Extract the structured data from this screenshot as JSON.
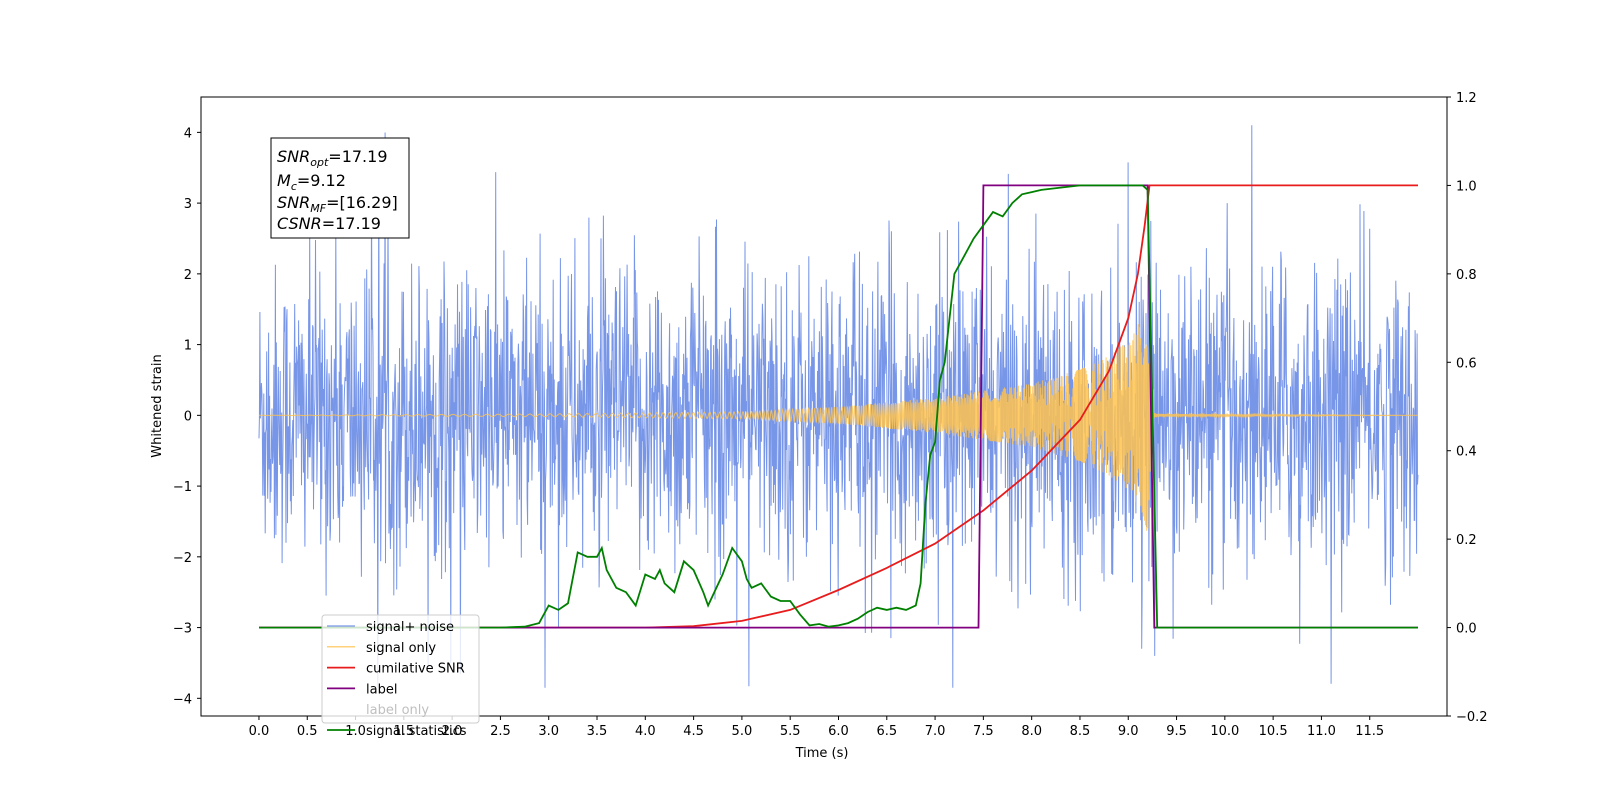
{
  "chart_data": {
    "type": "line",
    "title": "",
    "xlabel": "Time (s)",
    "ylabel": "Whitened strain",
    "y2label": "",
    "xlim": [
      -0.6,
      12.3
    ],
    "ylim": [
      -4.25,
      4.5
    ],
    "y2lim": [
      -0.2,
      1.2
    ],
    "x_ticks": [
      "0.0",
      "0.5",
      "1.0",
      "1.5",
      "2.0",
      "2.5",
      "3.0",
      "3.5",
      "4.0",
      "4.5",
      "5.0",
      "5.5",
      "6.0",
      "6.5",
      "7.0",
      "7.5",
      "8.0",
      "8.5",
      "9.0",
      "9.5",
      "10.0",
      "10.5",
      "11.0",
      "11.5"
    ],
    "y_ticks": [
      "−4",
      "−3",
      "−2",
      "−1",
      "0",
      "1",
      "2",
      "3",
      "4"
    ],
    "y2_ticks": [
      "−0.2",
      "0.0",
      "0.2",
      "0.4",
      "0.6",
      "0.8",
      "1.0",
      "1.2"
    ],
    "grid": false,
    "legend_position": "lower-left",
    "annotation": {
      "snr_opt": {
        "base": "SNR",
        "sub": "opt",
        "value": "=17.19"
      },
      "mc": {
        "base": "M",
        "sub": "c",
        "value": "=9.12"
      },
      "snr_mf": {
        "base": "SNR",
        "sub": "MF",
        "value": "=[16.29]"
      },
      "csnr": {
        "base": "CSNR",
        "value": "=17.19"
      }
    },
    "series": [
      {
        "name": "signal+ noise",
        "axis": "left",
        "color": "#7896e8",
        "t_range": [
          0.0,
          12.0
        ],
        "sample_count": 2400,
        "noise_envelope": 3.8,
        "description_values": {
          "min": -3.85,
          "max": 4.1
        }
      },
      {
        "name": "signal only",
        "axis": "left",
        "color": "#ffc34d",
        "t_range": [
          0.0,
          12.0
        ],
        "chirp_amplitude": [
          [
            0.0,
            0.0
          ],
          [
            3.0,
            0.02
          ],
          [
            5.0,
            0.05
          ],
          [
            6.0,
            0.12
          ],
          [
            7.0,
            0.25
          ],
          [
            8.0,
            0.45
          ],
          [
            8.5,
            0.65
          ],
          [
            8.8,
            0.85
          ],
          [
            9.0,
            1.05
          ],
          [
            9.15,
            1.4
          ],
          [
            9.2,
            1.7
          ],
          [
            9.25,
            0.05
          ],
          [
            9.3,
            0.02
          ],
          [
            12.0,
            0.0
          ]
        ]
      },
      {
        "name": "cumilative SNR",
        "axis": "right",
        "color": "#e81c1c",
        "points": [
          [
            0.0,
            0.0
          ],
          [
            4.0,
            0.0
          ],
          [
            4.5,
            0.003
          ],
          [
            5.0,
            0.015
          ],
          [
            5.5,
            0.04
          ],
          [
            6.0,
            0.085
          ],
          [
            6.5,
            0.135
          ],
          [
            7.0,
            0.19
          ],
          [
            7.5,
            0.265
          ],
          [
            8.0,
            0.355
          ],
          [
            8.5,
            0.47
          ],
          [
            8.8,
            0.58
          ],
          [
            9.0,
            0.7
          ],
          [
            9.1,
            0.8
          ],
          [
            9.17,
            0.91
          ],
          [
            9.22,
            1.0
          ],
          [
            12.0,
            1.0
          ]
        ]
      },
      {
        "name": "label",
        "axis": "right",
        "color": "#800080",
        "points": [
          [
            0.0,
            0.0
          ],
          [
            7.45,
            0.0
          ],
          [
            7.5,
            1.0
          ],
          [
            9.2,
            1.0
          ],
          [
            9.27,
            0.0
          ],
          [
            12.0,
            0.0
          ]
        ]
      },
      {
        "name": "label only",
        "axis": "right",
        "color": "#800080",
        "hidden_in_plot": true,
        "points": []
      },
      {
        "name": "signal statistics",
        "axis": "right",
        "color": "#008000",
        "points": [
          [
            0.0,
            0.0
          ],
          [
            2.5,
            0.0
          ],
          [
            2.75,
            0.002
          ],
          [
            2.9,
            0.01
          ],
          [
            3.0,
            0.05
          ],
          [
            3.1,
            0.04
          ],
          [
            3.2,
            0.055
          ],
          [
            3.3,
            0.17
          ],
          [
            3.4,
            0.16
          ],
          [
            3.5,
            0.16
          ],
          [
            3.55,
            0.18
          ],
          [
            3.6,
            0.13
          ],
          [
            3.7,
            0.09
          ],
          [
            3.8,
            0.08
          ],
          [
            3.9,
            0.05
          ],
          [
            4.0,
            0.12
          ],
          [
            4.1,
            0.11
          ],
          [
            4.15,
            0.13
          ],
          [
            4.2,
            0.1
          ],
          [
            4.3,
            0.08
          ],
          [
            4.4,
            0.15
          ],
          [
            4.5,
            0.13
          ],
          [
            4.6,
            0.08
          ],
          [
            4.65,
            0.05
          ],
          [
            4.8,
            0.12
          ],
          [
            4.9,
            0.18
          ],
          [
            5.0,
            0.15
          ],
          [
            5.05,
            0.11
          ],
          [
            5.1,
            0.09
          ],
          [
            5.2,
            0.1
          ],
          [
            5.3,
            0.07
          ],
          [
            5.4,
            0.06
          ],
          [
            5.5,
            0.06
          ],
          [
            5.6,
            0.03
          ],
          [
            5.7,
            0.005
          ],
          [
            5.8,
            0.008
          ],
          [
            5.9,
            0.002
          ],
          [
            6.0,
            0.005
          ],
          [
            6.1,
            0.01
          ],
          [
            6.2,
            0.02
          ],
          [
            6.3,
            0.035
          ],
          [
            6.4,
            0.045
          ],
          [
            6.5,
            0.04
          ],
          [
            6.6,
            0.045
          ],
          [
            6.7,
            0.04
          ],
          [
            6.8,
            0.05
          ],
          [
            6.85,
            0.1
          ],
          [
            6.9,
            0.28
          ],
          [
            6.95,
            0.39
          ],
          [
            7.0,
            0.42
          ],
          [
            7.05,
            0.56
          ],
          [
            7.1,
            0.6
          ],
          [
            7.2,
            0.8
          ],
          [
            7.3,
            0.84
          ],
          [
            7.4,
            0.88
          ],
          [
            7.5,
            0.91
          ],
          [
            7.6,
            0.94
          ],
          [
            7.7,
            0.93
          ],
          [
            7.8,
            0.96
          ],
          [
            7.9,
            0.98
          ],
          [
            8.0,
            0.985
          ],
          [
            8.1,
            0.99
          ],
          [
            8.3,
            0.995
          ],
          [
            8.5,
            1.0
          ],
          [
            9.15,
            1.0
          ],
          [
            9.2,
            0.99
          ],
          [
            9.25,
            0.5
          ],
          [
            9.3,
            0.0
          ],
          [
            12.0,
            0.0
          ]
        ]
      }
    ]
  }
}
